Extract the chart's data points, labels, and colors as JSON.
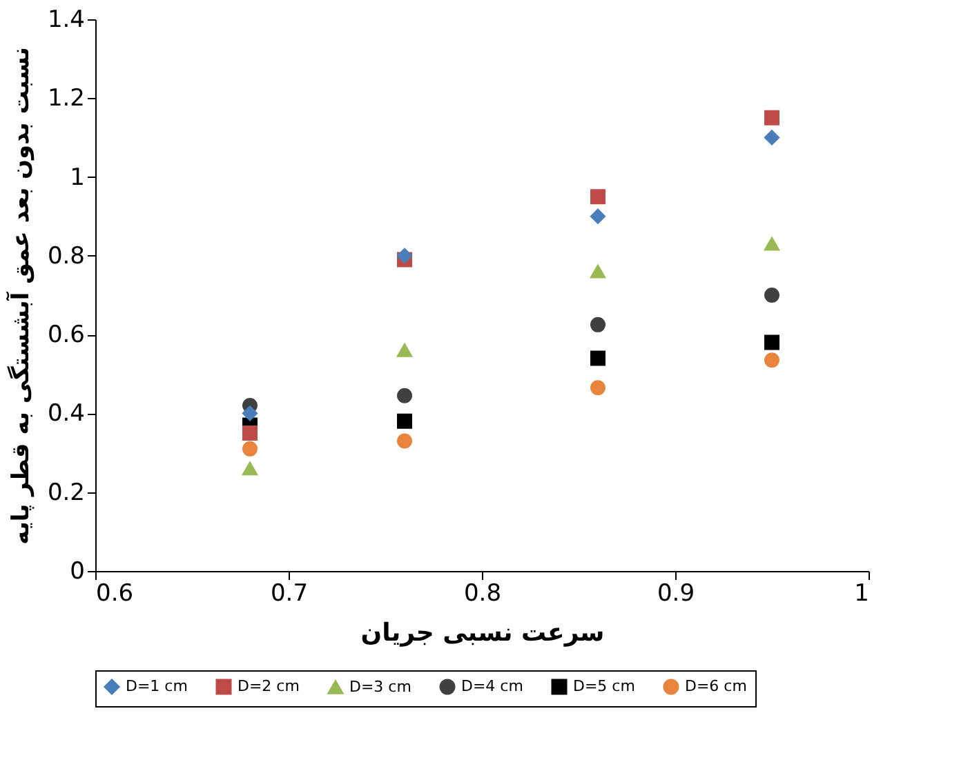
{
  "chart_data": {
    "type": "scatter",
    "xlabel": "سرعت نسبی جریان",
    "ylabel": "نسبت بدون بعد عمق آبشستگی به قطر پایه",
    "x": [
      0.68,
      0.76,
      0.86,
      0.95
    ],
    "xlim": [
      0.6,
      1
    ],
    "xticks": [
      0.6,
      0.7,
      0.8,
      0.9,
      1
    ],
    "ylim": [
      0,
      1.4
    ],
    "yticks": [
      0,
      0.2,
      0.4,
      0.6,
      0.8,
      1,
      1.2,
      1.4
    ],
    "grid": false,
    "legend": "bottom",
    "series": [
      {
        "name": "D=1 cm",
        "color": "#4a7ebb",
        "marker": "diamond",
        "values": [
          0.4,
          0.8,
          0.9,
          1.1
        ]
      },
      {
        "name": "D=2 cm",
        "color": "#be4b48",
        "marker": "square",
        "values": [
          0.35,
          0.79,
          0.95,
          1.15
        ]
      },
      {
        "name": "D=3 cm",
        "color": "#98b954",
        "marker": "triangle",
        "values": [
          0.26,
          0.56,
          0.76,
          0.83
        ]
      },
      {
        "name": "D=4 cm",
        "color": "#404040",
        "marker": "circle",
        "values": [
          0.42,
          0.445,
          0.625,
          0.7
        ]
      },
      {
        "name": "D=5 cm",
        "color": "#000000",
        "marker": "square",
        "values": [
          0.37,
          0.38,
          0.54,
          0.58
        ]
      },
      {
        "name": "D=6 cm",
        "color": "#e8843c",
        "marker": "circle",
        "values": [
          0.31,
          0.33,
          0.465,
          0.535
        ]
      }
    ]
  }
}
